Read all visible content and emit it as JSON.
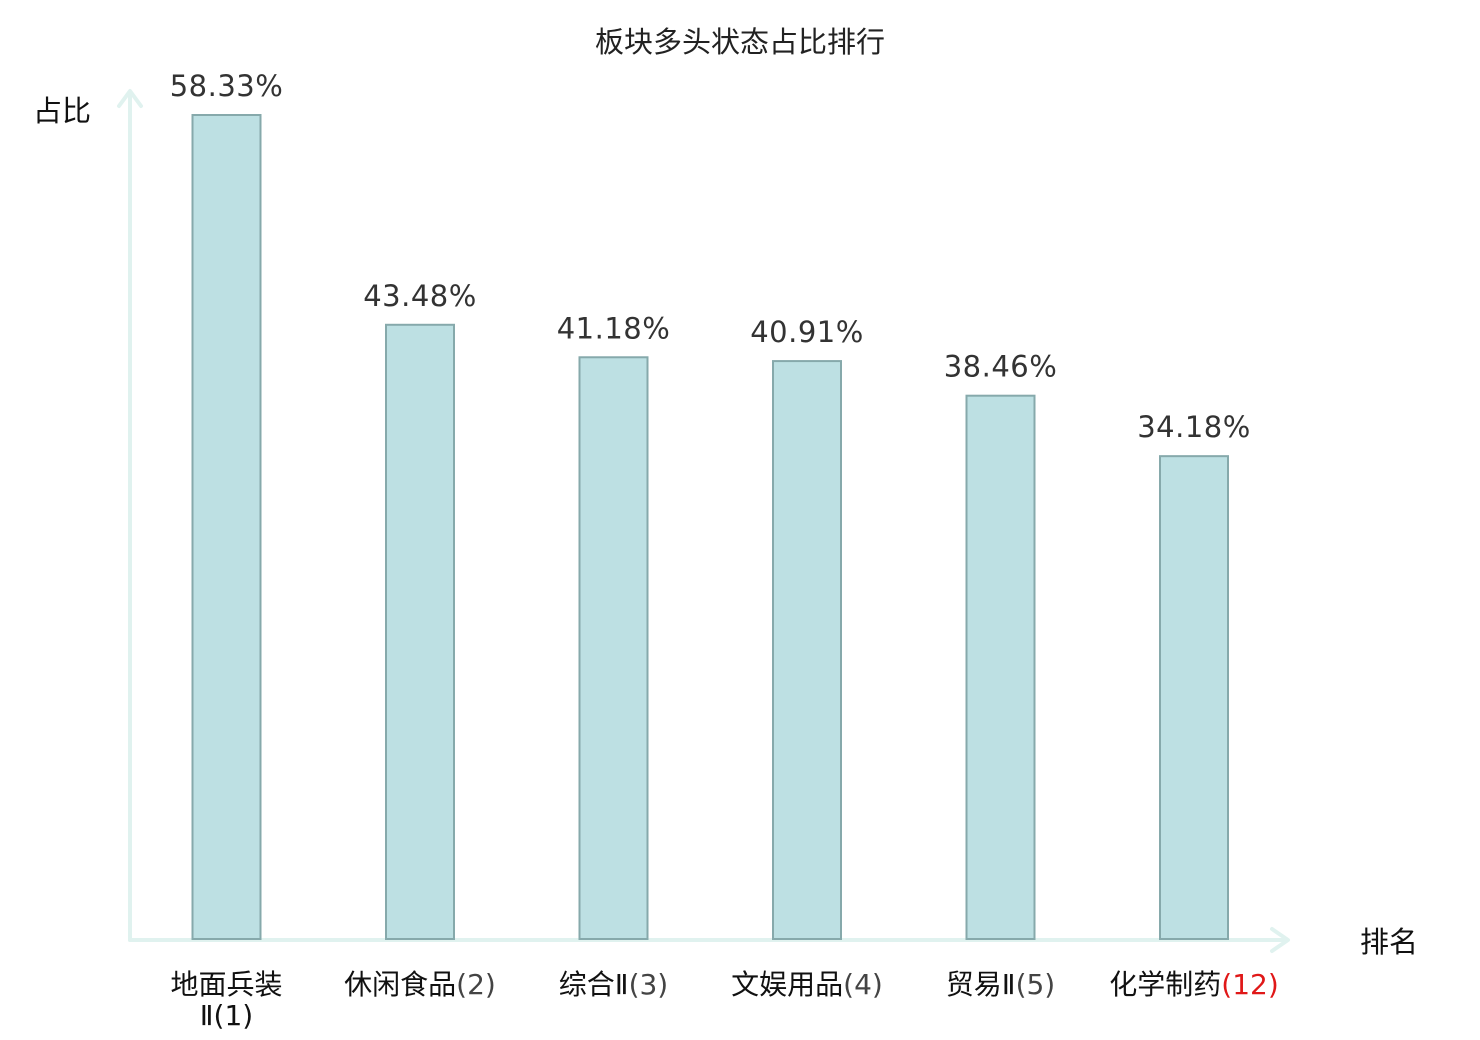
{
  "chart_data": {
    "type": "bar",
    "title": "板块多头状态占比排行",
    "ylabel": "占比",
    "xlabel": "排名",
    "categories": [
      {
        "name": "地面兵装Ⅱ",
        "rank": "(1)",
        "highlight": false
      },
      {
        "name": "休闲食品",
        "rank": "(2)",
        "highlight": false
      },
      {
        "name": "综合Ⅱ",
        "rank": "(3)",
        "highlight": false
      },
      {
        "name": "文娱用品",
        "rank": "(4)",
        "highlight": false
      },
      {
        "name": "贸易Ⅱ",
        "rank": "(5)",
        "highlight": false
      },
      {
        "name": "化学制药",
        "rank": "(12)",
        "highlight": true
      }
    ],
    "values": [
      58.33,
      43.48,
      41.18,
      40.91,
      38.46,
      34.18
    ],
    "value_labels": [
      "58.33%",
      "43.48%",
      "41.18%",
      "40.91%",
      "38.46%",
      "34.18%"
    ],
    "unit": "%",
    "ylim": [
      0,
      58.33
    ],
    "grid": false,
    "colors": {
      "bar_fill": "#bde0e3",
      "bar_stroke": "#86a9ab",
      "axis": "#e0f2ef",
      "highlight": "#e01818",
      "text": "#222222"
    }
  }
}
